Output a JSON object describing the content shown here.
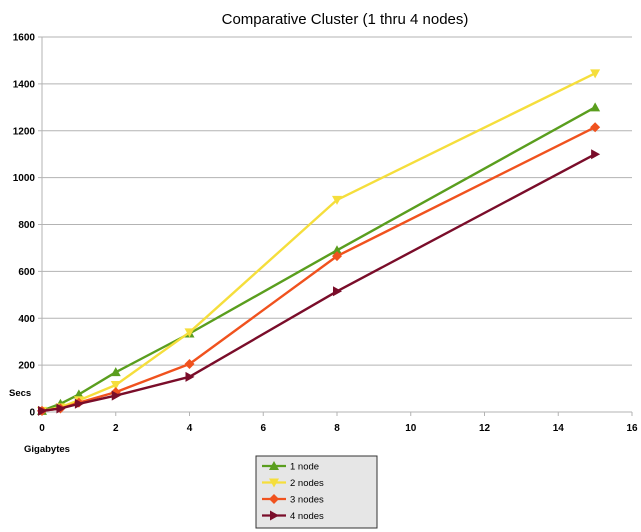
{
  "chart_data": {
    "type": "line",
    "title": "Comparative Cluster (1 thru 4 nodes)",
    "xlabel": "Gigabytes",
    "ylabel": "Secs",
    "xlim": [
      0,
      16
    ],
    "ylim": [
      0,
      1600
    ],
    "x_ticks": [
      "0",
      "2",
      "4",
      "6",
      "8",
      "10",
      "12",
      "14",
      "16"
    ],
    "y_ticks": [
      "0",
      "200",
      "400",
      "600",
      "800",
      "1000",
      "1200",
      "1400",
      "1600"
    ],
    "grid": "horizontal",
    "legend_position": "bottom",
    "series": [
      {
        "name": "1 node",
        "color": "#5a9e1e",
        "marker": "triangle-up",
        "x": [
          0,
          0.5,
          1,
          2,
          4,
          8,
          15
        ],
        "y": [
          5,
          35,
          75,
          170,
          335,
          690,
          1300
        ]
      },
      {
        "name": "2 nodes",
        "color": "#f5de3c",
        "marker": "triangle-down",
        "x": [
          0,
          0.5,
          1,
          2,
          4,
          8,
          15
        ],
        "y": [
          5,
          20,
          50,
          115,
          340,
          905,
          1445
        ]
      },
      {
        "name": "3 nodes",
        "color": "#f0521e",
        "marker": "diamond",
        "x": [
          0,
          0.5,
          1,
          2,
          4,
          8,
          15
        ],
        "y": [
          5,
          15,
          40,
          85,
          205,
          665,
          1215
        ]
      },
      {
        "name": "4 nodes",
        "color": "#7a0d2a",
        "marker": "triangle-right",
        "x": [
          0,
          0.5,
          1,
          2,
          4,
          8,
          15
        ],
        "y": [
          5,
          15,
          35,
          70,
          150,
          515,
          1100
        ]
      }
    ]
  }
}
